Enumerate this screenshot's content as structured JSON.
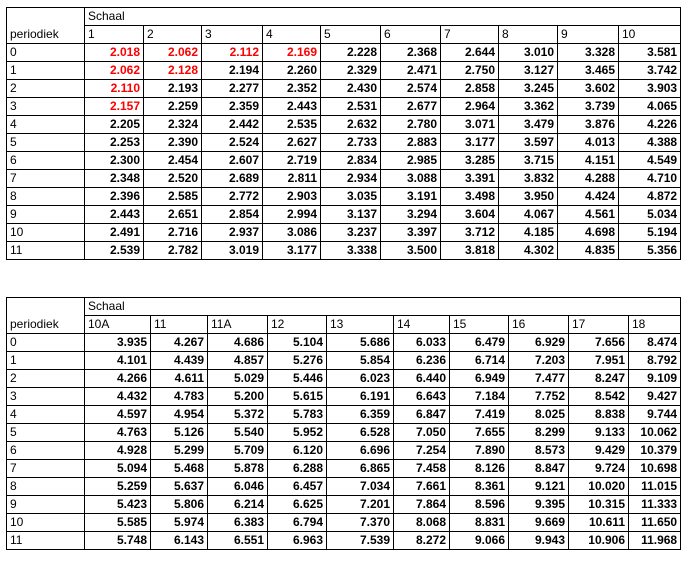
{
  "tables": [
    {
      "row_header": "periodiek",
      "group_header": "Schaal",
      "columns": [
        "1",
        "2",
        "3",
        "4",
        "5",
        "6",
        "7",
        "8",
        "9",
        "10"
      ],
      "highlight_color": "#ff0000",
      "rows": [
        {
          "label": "0",
          "values": [
            "2.018",
            "2.062",
            "2.112",
            "2.169",
            "2.228",
            "2.368",
            "2.644",
            "3.010",
            "3.328",
            "3.581"
          ],
          "highlighted": [
            0,
            1,
            2,
            3
          ]
        },
        {
          "label": "1",
          "values": [
            "2.062",
            "2.128",
            "2.194",
            "2.260",
            "2.329",
            "2.471",
            "2.750",
            "3.127",
            "3.465",
            "3.742"
          ],
          "highlighted": [
            0,
            1
          ]
        },
        {
          "label": "2",
          "values": [
            "2.110",
            "2.193",
            "2.277",
            "2.352",
            "2.430",
            "2.574",
            "2.858",
            "3.245",
            "3.602",
            "3.903"
          ],
          "highlighted": [
            0
          ]
        },
        {
          "label": "3",
          "values": [
            "2.157",
            "2.259",
            "2.359",
            "2.443",
            "2.531",
            "2.677",
            "2.964",
            "3.362",
            "3.739",
            "4.065"
          ],
          "highlighted": [
            0
          ]
        },
        {
          "label": "4",
          "values": [
            "2.205",
            "2.324",
            "2.442",
            "2.535",
            "2.632",
            "2.780",
            "3.071",
            "3.479",
            "3.876",
            "4.226"
          ],
          "highlighted": []
        },
        {
          "label": "5",
          "values": [
            "2.253",
            "2.390",
            "2.524",
            "2.627",
            "2.733",
            "2.883",
            "3.177",
            "3.597",
            "4.013",
            "4.388"
          ],
          "highlighted": []
        },
        {
          "label": "6",
          "values": [
            "2.300",
            "2.454",
            "2.607",
            "2.719",
            "2.834",
            "2.985",
            "3.285",
            "3.715",
            "4.151",
            "4.549"
          ],
          "highlighted": []
        },
        {
          "label": "7",
          "values": [
            "2.348",
            "2.520",
            "2.689",
            "2.811",
            "2.934",
            "3.088",
            "3.391",
            "3.832",
            "4.288",
            "4.710"
          ],
          "highlighted": []
        },
        {
          "label": "8",
          "values": [
            "2.396",
            "2.585",
            "2.772",
            "2.903",
            "3.035",
            "3.191",
            "3.498",
            "3.950",
            "4.424",
            "4.872"
          ],
          "highlighted": []
        },
        {
          "label": "9",
          "values": [
            "2.443",
            "2.651",
            "2.854",
            "2.994",
            "3.137",
            "3.294",
            "3.604",
            "4.067",
            "4.561",
            "5.034"
          ],
          "highlighted": []
        },
        {
          "label": "10",
          "values": [
            "2.491",
            "2.716",
            "2.937",
            "3.086",
            "3.237",
            "3.397",
            "3.712",
            "4.185",
            "4.698",
            "5.194"
          ],
          "highlighted": []
        },
        {
          "label": "11",
          "values": [
            "2.539",
            "2.782",
            "3.019",
            "3.177",
            "3.338",
            "3.500",
            "3.818",
            "4.302",
            "4.835",
            "5.356"
          ],
          "highlighted": []
        }
      ]
    },
    {
      "row_header": "periodiek",
      "group_header": "Schaal",
      "columns": [
        "10A",
        "11",
        "11A",
        "12",
        "13",
        "14",
        "15",
        "16",
        "17",
        "18"
      ],
      "rows": [
        {
          "label": "0",
          "values": [
            "3.935",
            "4.267",
            "4.686",
            "5.104",
            "5.686",
            "6.033",
            "6.479",
            "6.929",
            "7.656",
            "8.474"
          ]
        },
        {
          "label": "1",
          "values": [
            "4.101",
            "4.439",
            "4.857",
            "5.276",
            "5.854",
            "6.236",
            "6.714",
            "7.203",
            "7.951",
            "8.792"
          ]
        },
        {
          "label": "2",
          "values": [
            "4.266",
            "4.611",
            "5.029",
            "5.446",
            "6.023",
            "6.440",
            "6.949",
            "7.477",
            "8.247",
            "9.109"
          ]
        },
        {
          "label": "3",
          "values": [
            "4.432",
            "4.783",
            "5.200",
            "5.615",
            "6.191",
            "6.643",
            "7.184",
            "7.752",
            "8.542",
            "9.427"
          ]
        },
        {
          "label": "4",
          "values": [
            "4.597",
            "4.954",
            "5.372",
            "5.783",
            "6.359",
            "6.847",
            "7.419",
            "8.025",
            "8.838",
            "9.744"
          ]
        },
        {
          "label": "5",
          "values": [
            "4.763",
            "5.126",
            "5.540",
            "5.952",
            "6.528",
            "7.050",
            "7.655",
            "8.299",
            "9.133",
            "10.062"
          ]
        },
        {
          "label": "6",
          "values": [
            "4.928",
            "5.299",
            "5.709",
            "6.120",
            "6.696",
            "7.254",
            "7.890",
            "8.573",
            "9.429",
            "10.379"
          ]
        },
        {
          "label": "7",
          "values": [
            "5.094",
            "5.468",
            "5.878",
            "6.288",
            "6.865",
            "7.458",
            "8.126",
            "8.847",
            "9.724",
            "10.698"
          ]
        },
        {
          "label": "8",
          "values": [
            "5.259",
            "5.637",
            "6.046",
            "6.457",
            "7.034",
            "7.661",
            "8.361",
            "9.121",
            "10.020",
            "11.015"
          ]
        },
        {
          "label": "9",
          "values": [
            "5.423",
            "5.806",
            "6.214",
            "6.625",
            "7.201",
            "7.864",
            "8.596",
            "9.395",
            "10.315",
            "11.333"
          ]
        },
        {
          "label": "10",
          "values": [
            "5.585",
            "5.974",
            "6.383",
            "6.794",
            "7.370",
            "8.068",
            "8.831",
            "9.669",
            "10.611",
            "11.650"
          ]
        },
        {
          "label": "11",
          "values": [
            "5.748",
            "6.143",
            "6.551",
            "6.963",
            "7.539",
            "8.272",
            "9.066",
            "9.943",
            "10.906",
            "11.968"
          ]
        }
      ]
    }
  ]
}
